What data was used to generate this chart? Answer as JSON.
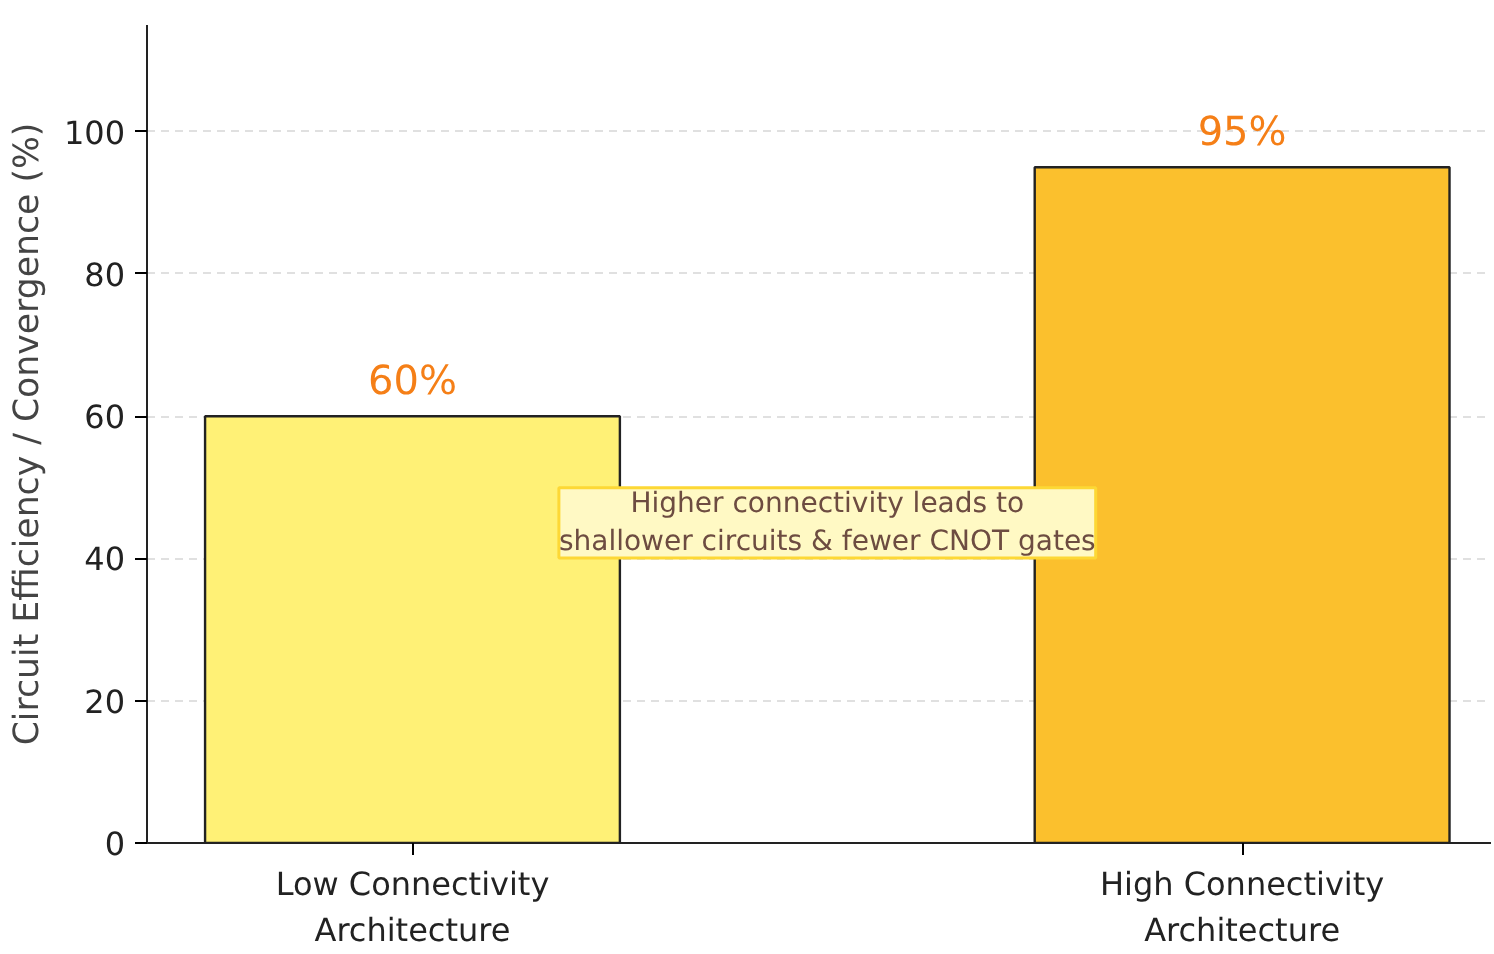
{
  "chart_data": {
    "type": "bar",
    "ylabel": "Circuit Efficiency / Convergence (%)",
    "categories": [
      "Low Connectivity\nArchitecture",
      "High Connectivity\nArchitecture"
    ],
    "values": [
      60,
      95
    ],
    "colors": [
      "#fff176",
      "#fbc02d"
    ],
    "value_labels": [
      "60%",
      "95%"
    ],
    "ylim": [
      0,
      115
    ],
    "yticks": [
      0,
      20,
      40,
      60,
      80,
      100
    ],
    "grid": "y",
    "annotations": [
      "Higher connectivity leads to\nshallower circuits & fewer CNOT gates"
    ]
  }
}
